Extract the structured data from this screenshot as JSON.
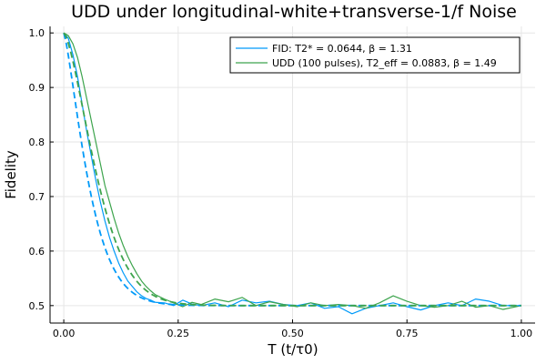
{
  "chart_data": {
    "type": "line",
    "title": "UDD under longitudinal-white+transverse-1/f Noise",
    "xlabel": "T (t/τ0)",
    "ylabel": "Fidelity",
    "xlim": [
      -0.03,
      1.03
    ],
    "ylim": [
      0.468,
      1.012
    ],
    "xticks": [
      0,
      0.25,
      0.5,
      0.75,
      1.0
    ],
    "xtick_labels": [
      "0.00",
      "0.25",
      "0.50",
      "0.75",
      "1.00"
    ],
    "yticks": [
      0.5,
      0.6,
      0.7,
      0.8,
      0.9,
      1.0
    ],
    "ytick_labels": [
      "0.5",
      "0.6",
      "0.7",
      "0.8",
      "0.9",
      "1.0"
    ],
    "grid": true,
    "legend_position": "top-right",
    "series": [
      {
        "name": "FID: T2* = 0.0644, β = 1.31",
        "color": "#009af9",
        "style": "solid",
        "x": [
          0,
          0.01,
          0.02,
          0.03,
          0.04,
          0.05,
          0.06,
          0.07,
          0.08,
          0.09,
          0.1,
          0.11,
          0.12,
          0.13,
          0.14,
          0.15,
          0.16,
          0.17,
          0.18,
          0.19,
          0.2,
          0.22,
          0.24,
          0.26,
          0.28,
          0.3,
          0.33,
          0.36,
          0.39,
          0.42,
          0.45,
          0.48,
          0.51,
          0.54,
          0.57,
          0.6,
          0.63,
          0.66,
          0.69,
          0.72,
          0.75,
          0.78,
          0.81,
          0.84,
          0.87,
          0.9,
          0.93,
          0.96,
          1.0
        ],
        "y": [
          1.0,
          0.99,
          0.96,
          0.92,
          0.87,
          0.82,
          0.775,
          0.73,
          0.69,
          0.655,
          0.625,
          0.6,
          0.578,
          0.56,
          0.545,
          0.535,
          0.525,
          0.518,
          0.513,
          0.51,
          0.506,
          0.505,
          0.5,
          0.51,
          0.503,
          0.5,
          0.505,
          0.498,
          0.51,
          0.505,
          0.508,
          0.502,
          0.5,
          0.505,
          0.495,
          0.498,
          0.485,
          0.495,
          0.5,
          0.505,
          0.498,
          0.492,
          0.5,
          0.505,
          0.5,
          0.512,
          0.508,
          0.5,
          0.5
        ]
      },
      {
        "name": "UDD (100 pulses), T2_eff = 0.0883, β = 1.49",
        "color": "#3da44d",
        "style": "solid",
        "x": [
          0,
          0.01,
          0.02,
          0.03,
          0.04,
          0.05,
          0.06,
          0.07,
          0.08,
          0.09,
          0.1,
          0.11,
          0.12,
          0.13,
          0.14,
          0.15,
          0.16,
          0.17,
          0.18,
          0.19,
          0.2,
          0.22,
          0.24,
          0.26,
          0.28,
          0.3,
          0.33,
          0.36,
          0.39,
          0.42,
          0.45,
          0.48,
          0.51,
          0.54,
          0.57,
          0.6,
          0.63,
          0.66,
          0.69,
          0.72,
          0.75,
          0.78,
          0.81,
          0.84,
          0.87,
          0.9,
          0.93,
          0.96,
          1.0
        ],
        "y": [
          1.0,
          0.995,
          0.98,
          0.955,
          0.92,
          0.88,
          0.84,
          0.8,
          0.76,
          0.72,
          0.69,
          0.66,
          0.633,
          0.61,
          0.59,
          0.573,
          0.558,
          0.545,
          0.535,
          0.527,
          0.52,
          0.512,
          0.505,
          0.498,
          0.506,
          0.502,
          0.512,
          0.507,
          0.515,
          0.5,
          0.507,
          0.502,
          0.498,
          0.505,
          0.5,
          0.502,
          0.5,
          0.495,
          0.505,
          0.518,
          0.508,
          0.5,
          0.497,
          0.5,
          0.508,
          0.497,
          0.5,
          0.493,
          0.5
        ]
      },
      {
        "name": "",
        "color": "#009af9",
        "style": "dashed",
        "T2": 0.0644,
        "beta": 1.31
      },
      {
        "name": "",
        "color": "#3da44d",
        "style": "dashed",
        "T2": 0.0883,
        "beta": 1.49
      }
    ]
  }
}
